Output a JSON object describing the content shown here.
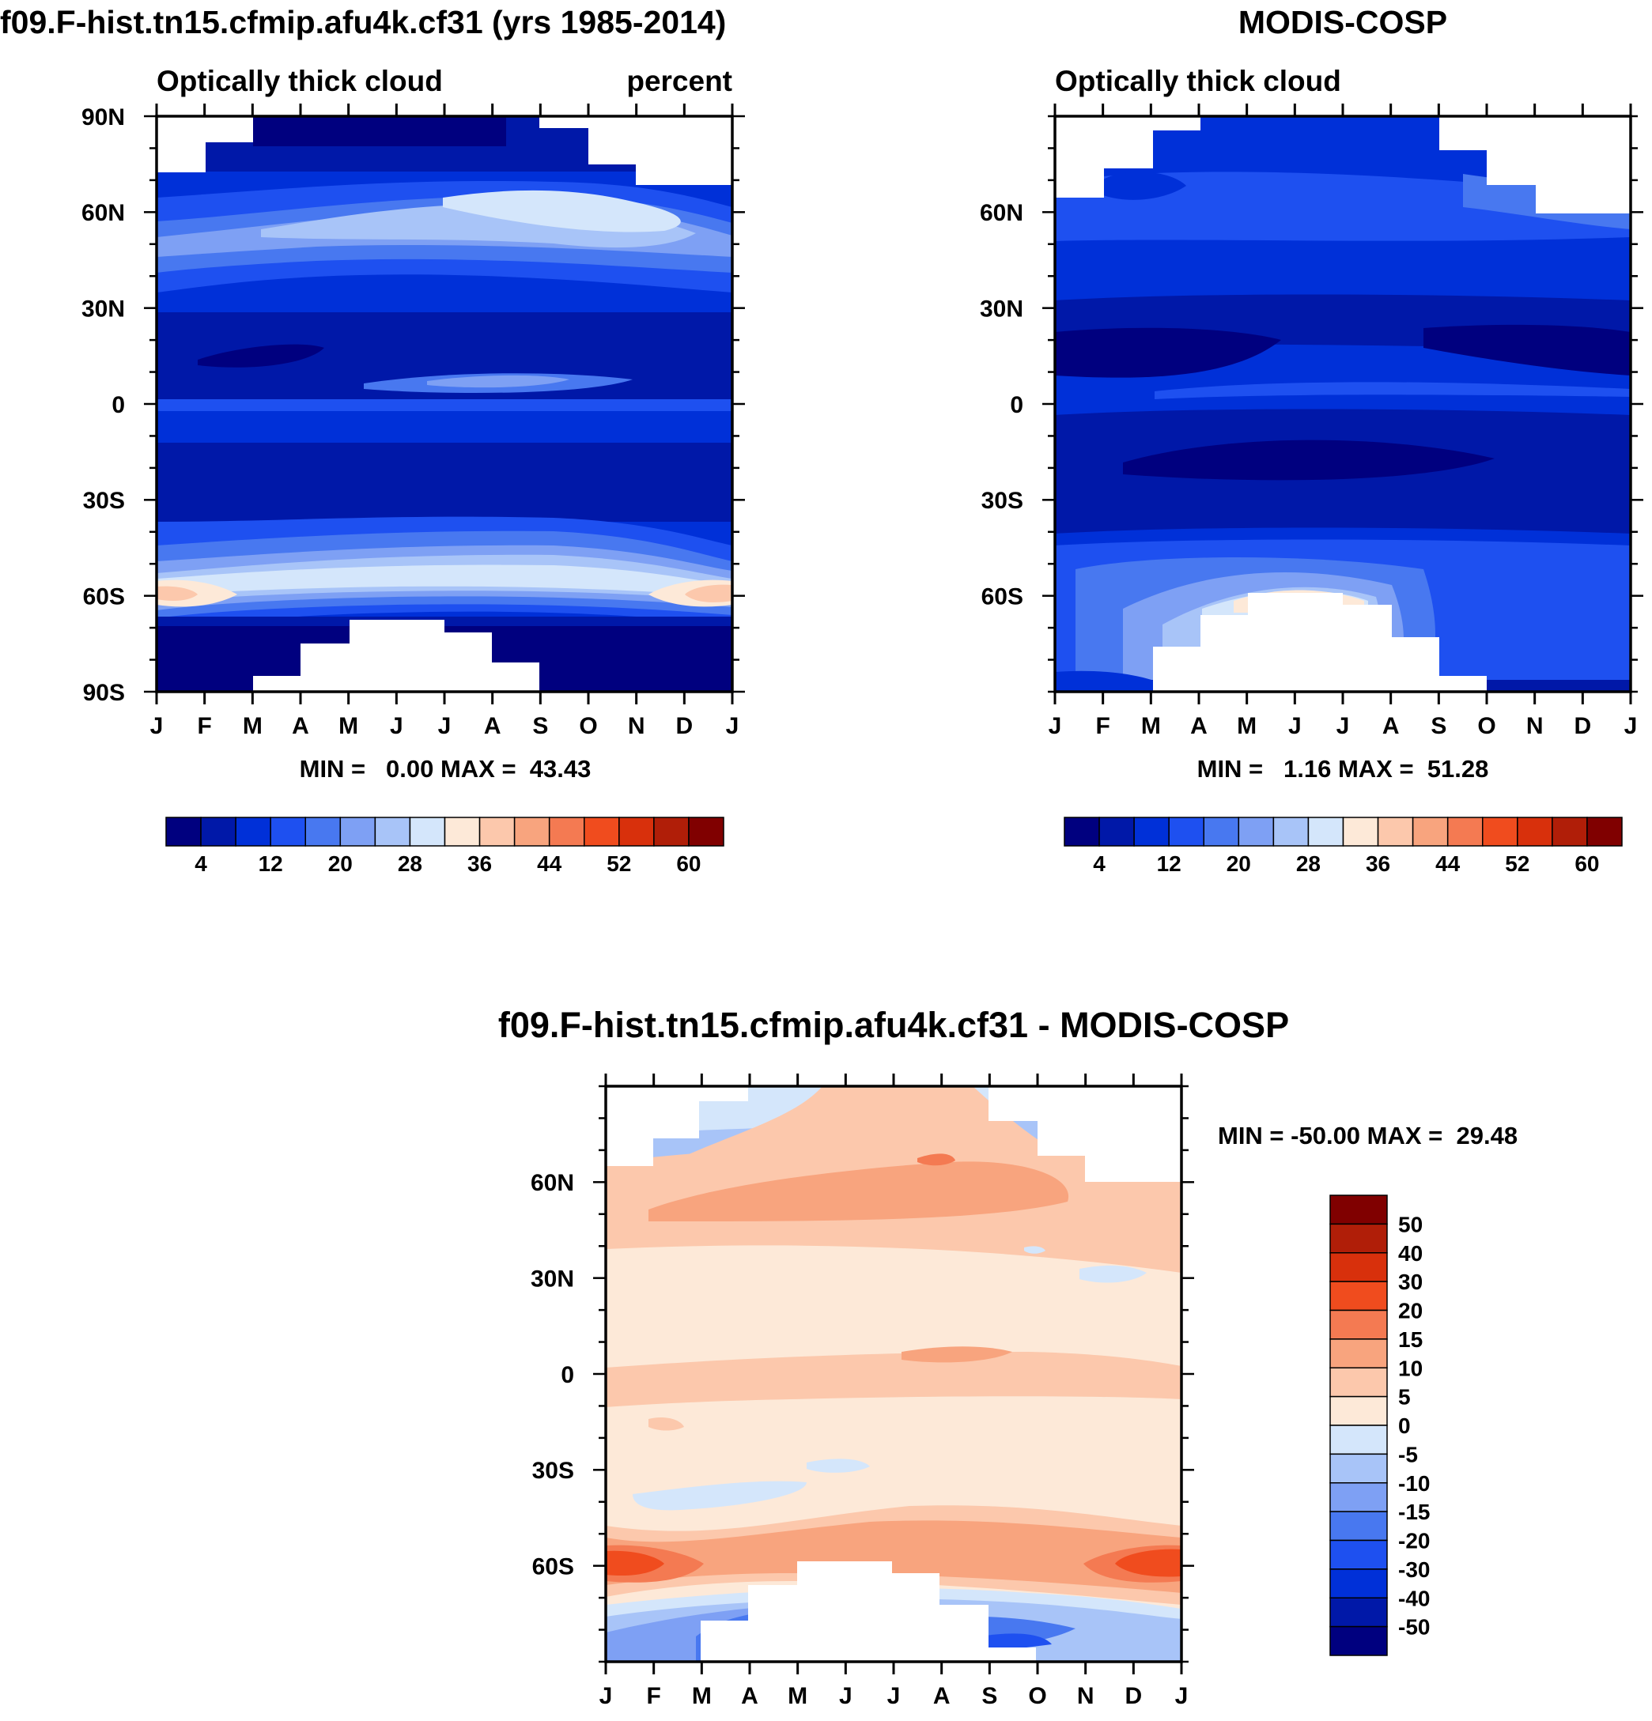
{
  "chart_data": [
    {
      "type": "heatmap",
      "panel": "model",
      "title": "f09.F-hist.tn15.cfmip.afu4k.cf31 (yrs 1985-2014)",
      "subtitle_left": "Optically thick cloud",
      "subtitle_right": "percent",
      "x_tick_labels": [
        "J",
        "F",
        "M",
        "A",
        "M",
        "J",
        "J",
        "A",
        "S",
        "O",
        "N",
        "D",
        "J"
      ],
      "y_tick_labels": [
        "90N",
        "60N",
        "30N",
        "0",
        "30S",
        "60S",
        "90S"
      ],
      "y_ticks": [
        90,
        60,
        30,
        0,
        -30,
        -60,
        -90
      ],
      "ylim": [
        -90,
        90
      ],
      "min_max_text": "MIN =   0.00 MAX =  43.43",
      "min": 0.0,
      "max": 43.43,
      "colorbar_labels": [
        "4",
        "12",
        "20",
        "28",
        "36",
        "44",
        "52",
        "60"
      ]
    },
    {
      "type": "heatmap",
      "panel": "obs",
      "title": "MODIS-COSP",
      "subtitle_left": "Optically thick cloud",
      "x_tick_labels": [
        "J",
        "F",
        "M",
        "A",
        "M",
        "J",
        "J",
        "A",
        "S",
        "O",
        "N",
        "D",
        "J"
      ],
      "y_tick_labels": [
        "60N",
        "30N",
        "0",
        "30S",
        "60S"
      ],
      "y_ticks": [
        60,
        30,
        0,
        -30,
        -60
      ],
      "ylim": [
        -90,
        90
      ],
      "min_max_text": "MIN =   1.16 MAX =  51.28",
      "min": 1.16,
      "max": 51.28,
      "colorbar_labels": [
        "4",
        "12",
        "20",
        "28",
        "36",
        "44",
        "52",
        "60"
      ]
    },
    {
      "type": "heatmap",
      "panel": "difference",
      "title": "f09.F-hist.tn15.cfmip.afu4k.cf31 - MODIS-COSP",
      "x_tick_labels": [
        "J",
        "F",
        "M",
        "A",
        "M",
        "J",
        "J",
        "A",
        "S",
        "O",
        "N",
        "D",
        "J"
      ],
      "y_tick_labels": [
        "60N",
        "30N",
        "0",
        "30S",
        "60S"
      ],
      "y_ticks": [
        60,
        30,
        0,
        -30,
        -60
      ],
      "ylim": [
        -90,
        90
      ],
      "min_max_text": "MIN = -50.00 MAX =  29.48",
      "min": -50.0,
      "max": 29.48,
      "colorbar_labels": [
        "50",
        "40",
        "30",
        "20",
        "15",
        "10",
        "5",
        "0",
        "-5",
        "-10",
        "-15",
        "-20",
        "-30",
        "-40",
        "-50"
      ]
    }
  ],
  "colors": {
    "seq": [
      "#00007f",
      "#0018a8",
      "#0030d8",
      "#1e50f0",
      "#4878f0",
      "#7ea0f4",
      "#a8c4f8",
      "#d4e6fb",
      "#fde9d8",
      "#fcc8ac",
      "#f8a47e",
      "#f47a52",
      "#f04c1e",
      "#d8300c",
      "#b01e08",
      "#800000"
    ],
    "div": [
      "#00007f",
      "#0018a8",
      "#0030d8",
      "#1e50f0",
      "#4878f0",
      "#7ea0f4",
      "#a8c4f8",
      "#d4e6fb",
      "#fde9d8",
      "#fcc8ac",
      "#f8a47e",
      "#f47a52",
      "#f04c1e",
      "#d8300c",
      "#b01e08",
      "#800000"
    ]
  }
}
